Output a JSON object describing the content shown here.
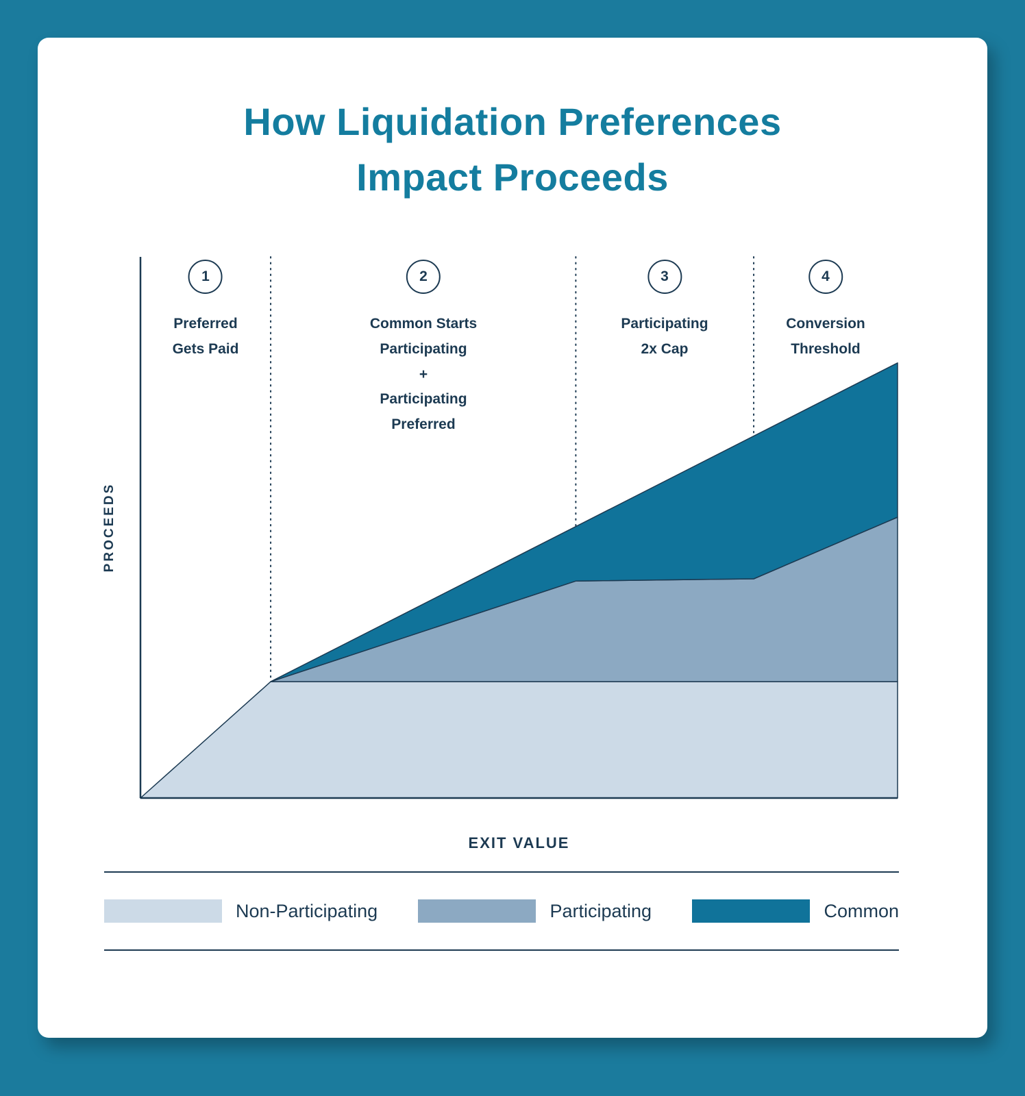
{
  "canvas": {
    "background_color": "#1b7b9d",
    "card_color": "#ffffff"
  },
  "title": {
    "line1": "How Liquidation Preferences",
    "line2": "Impact Proceeds",
    "color": "#147d9f"
  },
  "chart_data": {
    "type": "area",
    "title": "How Liquidation Preferences Impact Proceeds",
    "xlabel": "EXIT VALUE",
    "ylabel": "PROCEEDS",
    "axis_ticks": "none",
    "grid": false,
    "outline_color": "#1c3a52",
    "x_unit": "percent_of_plot_width",
    "y_unit": "percent_of_plot_height",
    "zone_boundaries_pct": [
      17.2,
      57.5,
      81
    ],
    "zones": [
      {
        "number": "1",
        "label_lines": [
          "Preferred",
          "Gets Paid"
        ]
      },
      {
        "number": "2",
        "label_lines": [
          "Common Starts",
          "Participating",
          "+",
          "Participating",
          "Preferred"
        ]
      },
      {
        "number": "3",
        "label_lines": [
          "Participating",
          "2x Cap"
        ]
      },
      {
        "number": "4",
        "label_lines": [
          "Conversion",
          "Threshold"
        ]
      }
    ],
    "series": [
      {
        "name": "Non-Participating",
        "color": "#ccdae7",
        "points_pct": [
          [
            0,
            0
          ],
          [
            17.2,
            21.5
          ],
          [
            100,
            21.5
          ],
          [
            100,
            0
          ]
        ]
      },
      {
        "name": "Participating",
        "color": "#8ca9c2",
        "points_pct": [
          [
            17.2,
            21.5
          ],
          [
            57.5,
            40.1
          ],
          [
            81,
            40.5
          ],
          [
            100,
            51.9
          ],
          [
            100,
            21.5
          ]
        ]
      },
      {
        "name": "Common",
        "color": "#10739a",
        "points_pct": [
          [
            17.2,
            21.5
          ],
          [
            100,
            80.4
          ],
          [
            100,
            51.9
          ],
          [
            81,
            40.5
          ],
          [
            57.5,
            40.1
          ]
        ]
      }
    ],
    "legend": [
      {
        "label": "Non-Participating",
        "color": "#ccdae7"
      },
      {
        "label": "Participating",
        "color": "#8ca9c2"
      },
      {
        "label": "Common",
        "color": "#10739a"
      }
    ],
    "legend_position": "bottom"
  }
}
